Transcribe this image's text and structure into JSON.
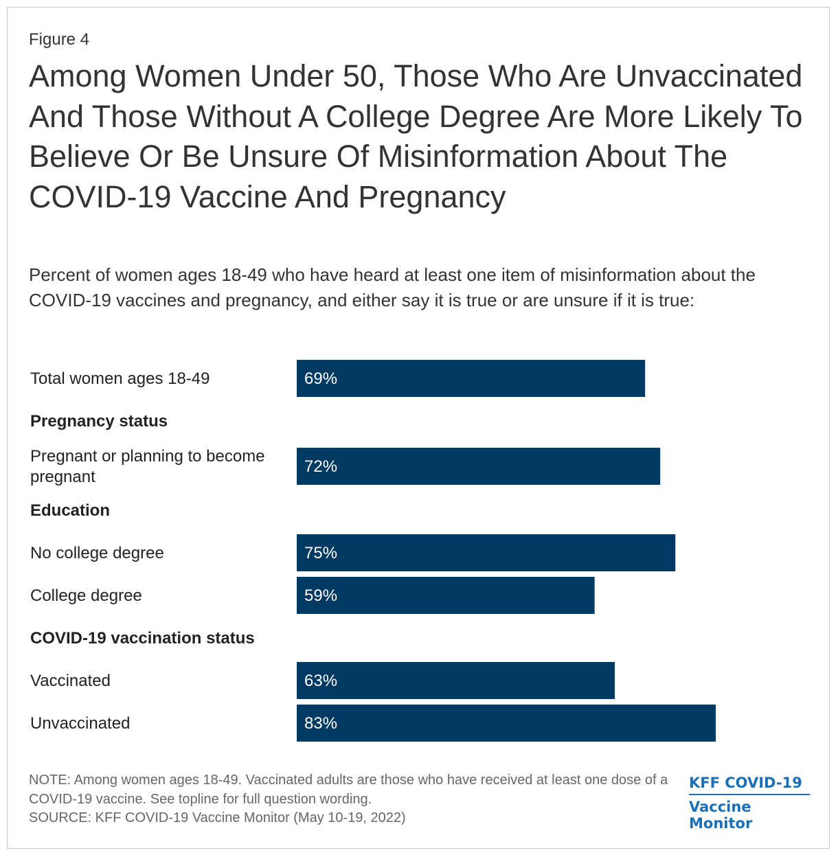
{
  "figure_label": "Figure 4",
  "chart_data": {
    "type": "bar",
    "orientation": "horizontal",
    "title": "Among Women Under 50, Those Who Are Unvaccinated And Those Without A College Degree Are More Likely To Believe Or Be Unsure Of Misinformation About The COVID-19 Vaccine And Pregnancy",
    "subtitle": "Percent of women ages 18-49 who have heard at least one item of misinformation about the COVID-19 vaccines and pregnancy, and either say it is true or are unsure if it is true:",
    "unit": "%",
    "xlim": [
      0,
      100
    ],
    "grid": false,
    "bar_color": "#003a63",
    "rows": [
      {
        "kind": "bar",
        "label": "Total women ages 18-49",
        "value": 69
      },
      {
        "kind": "group",
        "label": "Pregnancy status"
      },
      {
        "kind": "bar",
        "label": "Pregnant or planning to become pregnant",
        "label_lines": [
          "Pregnant or planning to become",
          "pregnant"
        ],
        "value": 72
      },
      {
        "kind": "group",
        "label": "Education"
      },
      {
        "kind": "bar",
        "label": "No college degree",
        "value": 75
      },
      {
        "kind": "bar",
        "label": "College degree",
        "value": 59
      },
      {
        "kind": "group",
        "label": "COVID-19 vaccination status"
      },
      {
        "kind": "bar",
        "label": "Vaccinated",
        "value": 63
      },
      {
        "kind": "bar",
        "label": "Unvaccinated",
        "value": 83
      }
    ]
  },
  "note": "NOTE: Among women ages 18-49. Vaccinated adults are those who have received at least one dose of a COVID-19 vaccine. See topline for full question wording.",
  "source": "SOURCE: KFF COVID-19 Vaccine Monitor (May 10-19, 2022)",
  "logo": {
    "line1": "KFF COVID-19",
    "line2": "Vaccine Monitor",
    "color": "#1a6fb7"
  }
}
